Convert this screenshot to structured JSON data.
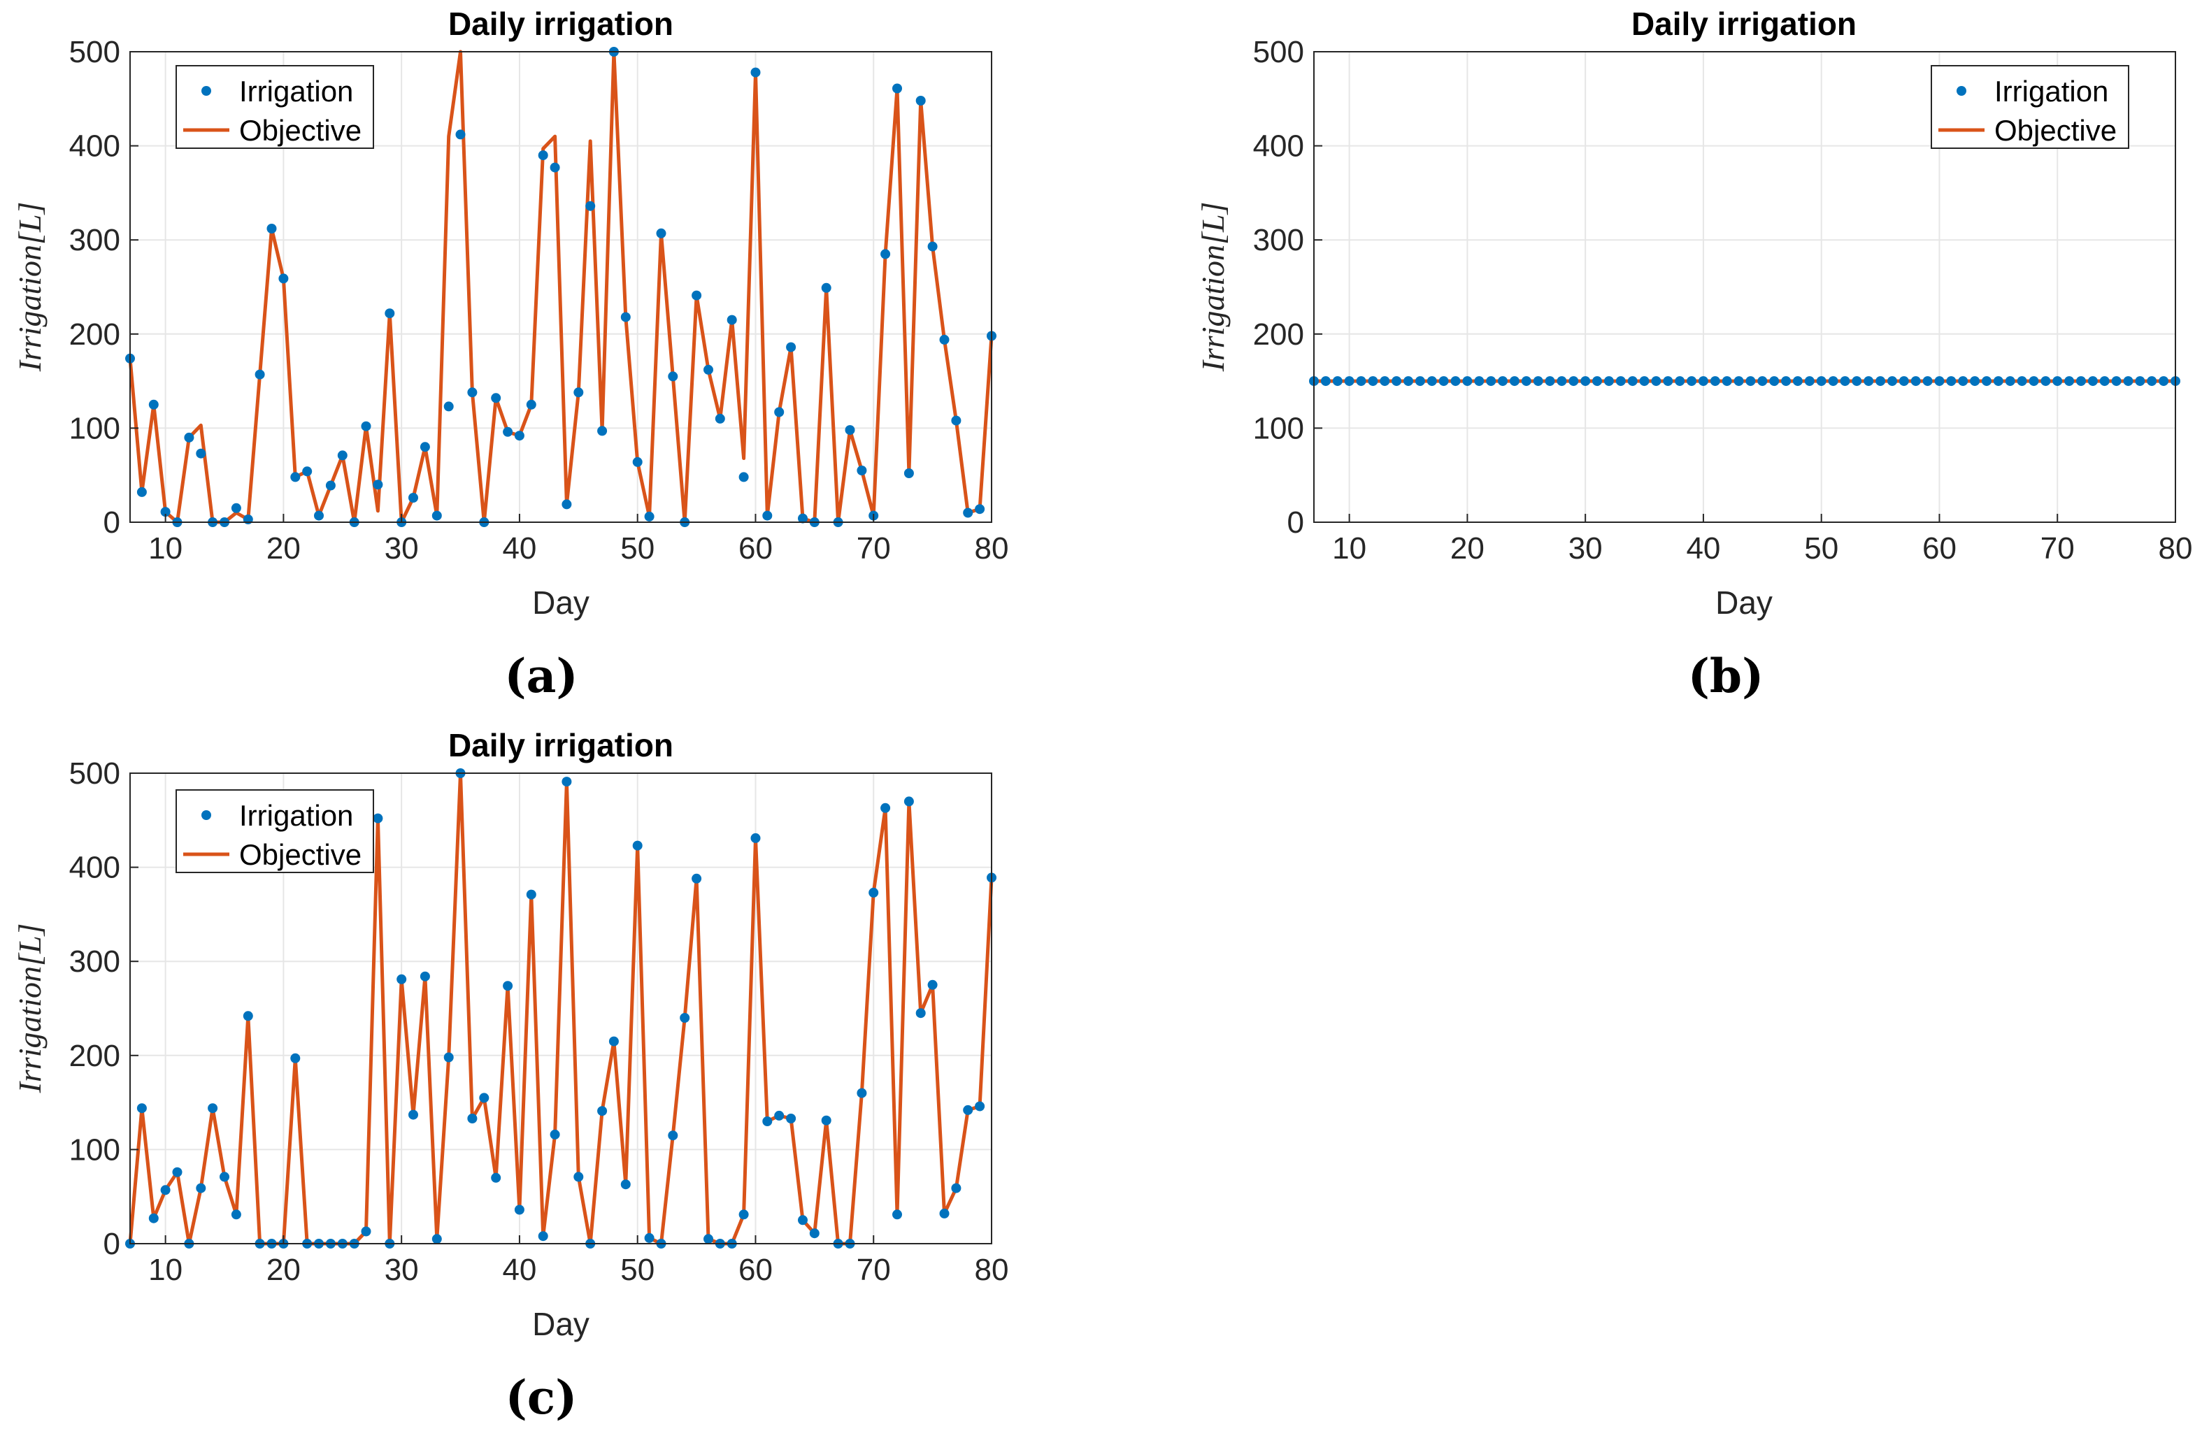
{
  "colors": {
    "points": "#0072BD",
    "line": "#D95319",
    "grid": "#e6e6e6",
    "axis": "#262626"
  },
  "chart_data": [
    {
      "panel_label": "(a)",
      "type": "line",
      "title": "Daily irrigation",
      "xlabel": "Day",
      "ylabel": "Irrigation[L]",
      "xlim": [
        7,
        80
      ],
      "ylim": [
        0,
        500
      ],
      "xticks": [
        10,
        20,
        30,
        40,
        50,
        60,
        70,
        80
      ],
      "yticks": [
        0,
        100,
        200,
        300,
        400,
        500
      ],
      "grid": true,
      "legend": {
        "position": "top-left",
        "entries": [
          "Irrigation",
          "Objective"
        ]
      },
      "x": [
        7,
        8,
        9,
        10,
        11,
        12,
        13,
        14,
        15,
        16,
        17,
        18,
        19,
        20,
        21,
        22,
        23,
        24,
        25,
        26,
        27,
        28,
        29,
        30,
        31,
        32,
        33,
        34,
        35,
        36,
        37,
        38,
        39,
        40,
        41,
        42,
        43,
        44,
        45,
        46,
        47,
        48,
        49,
        50,
        51,
        52,
        53,
        54,
        55,
        56,
        57,
        58,
        59,
        60,
        61,
        62,
        63,
        64,
        65,
        66,
        67,
        68,
        69,
        70,
        71,
        72,
        73,
        74,
        75,
        76,
        77,
        78,
        79,
        80
      ],
      "series": [
        {
          "name": "Irrigation",
          "style": "markers",
          "values": [
            174,
            32,
            125,
            11,
            0,
            90,
            73,
            0,
            0,
            15,
            3,
            157,
            312,
            259,
            48,
            54,
            7,
            39,
            71,
            0,
            102,
            40,
            222,
            0,
            26,
            80,
            7,
            123,
            412,
            138,
            0,
            132,
            96,
            92,
            125,
            390,
            377,
            19,
            138,
            336,
            97,
            500,
            218,
            64,
            6,
            307,
            155,
            0,
            241,
            162,
            110,
            215,
            48,
            478,
            7,
            117,
            186,
            4,
            0,
            249,
            0,
            98,
            55,
            7,
            285,
            461,
            52,
            448,
            293,
            194,
            108,
            10,
            14,
            198
          ]
        },
        {
          "name": "Objective",
          "style": "line",
          "values": [
            174,
            32,
            125,
            11,
            0,
            90,
            103,
            0,
            0,
            10,
            3,
            157,
            312,
            259,
            48,
            54,
            7,
            39,
            71,
            0,
            102,
            12,
            222,
            0,
            26,
            80,
            7,
            410,
            500,
            138,
            0,
            132,
            96,
            92,
            125,
            397,
            410,
            19,
            138,
            405,
            97,
            500,
            218,
            64,
            6,
            307,
            155,
            0,
            241,
            162,
            110,
            215,
            68,
            478,
            7,
            117,
            186,
            4,
            0,
            249,
            0,
            98,
            55,
            7,
            285,
            461,
            52,
            448,
            293,
            194,
            108,
            10,
            14,
            198
          ]
        }
      ]
    },
    {
      "panel_label": "(b)",
      "type": "line",
      "title": "Daily irrigation",
      "xlabel": "Day",
      "ylabel": "Irrigation[L]",
      "xlim": [
        7,
        80
      ],
      "ylim": [
        0,
        500
      ],
      "xticks": [
        10,
        20,
        30,
        40,
        50,
        60,
        70,
        80
      ],
      "yticks": [
        0,
        100,
        200,
        300,
        400,
        500
      ],
      "grid": true,
      "legend": {
        "position": "top-right",
        "entries": [
          "Irrigation",
          "Objective"
        ]
      },
      "x": [
        7,
        8,
        9,
        10,
        11,
        12,
        13,
        14,
        15,
        16,
        17,
        18,
        19,
        20,
        21,
        22,
        23,
        24,
        25,
        26,
        27,
        28,
        29,
        30,
        31,
        32,
        33,
        34,
        35,
        36,
        37,
        38,
        39,
        40,
        41,
        42,
        43,
        44,
        45,
        46,
        47,
        48,
        49,
        50,
        51,
        52,
        53,
        54,
        55,
        56,
        57,
        58,
        59,
        60,
        61,
        62,
        63,
        64,
        65,
        66,
        67,
        68,
        69,
        70,
        71,
        72,
        73,
        74,
        75,
        76,
        77,
        78,
        79,
        80
      ],
      "series": [
        {
          "name": "Irrigation",
          "style": "markers",
          "values": [
            150,
            150,
            150,
            150,
            150,
            150,
            150,
            150,
            150,
            150,
            150,
            150,
            150,
            150,
            150,
            150,
            150,
            150,
            150,
            150,
            150,
            150,
            150,
            150,
            150,
            150,
            150,
            150,
            150,
            150,
            150,
            150,
            150,
            150,
            150,
            150,
            150,
            150,
            150,
            150,
            150,
            150,
            150,
            150,
            150,
            150,
            150,
            150,
            150,
            150,
            150,
            150,
            150,
            150,
            150,
            150,
            150,
            150,
            150,
            150,
            150,
            150,
            150,
            150,
            150,
            150,
            150,
            150,
            150,
            150,
            150,
            150,
            150,
            150
          ]
        },
        {
          "name": "Objective",
          "style": "line",
          "values": [
            150,
            150,
            150,
            150,
            150,
            150,
            150,
            150,
            150,
            150,
            150,
            150,
            150,
            150,
            150,
            150,
            150,
            150,
            150,
            150,
            150,
            150,
            150,
            150,
            150,
            150,
            150,
            150,
            150,
            150,
            150,
            150,
            150,
            150,
            150,
            150,
            150,
            150,
            150,
            150,
            150,
            150,
            150,
            150,
            150,
            150,
            150,
            150,
            150,
            150,
            150,
            150,
            150,
            150,
            150,
            150,
            150,
            150,
            150,
            150,
            150,
            150,
            150,
            150,
            150,
            150,
            150,
            150,
            150,
            150,
            150,
            150,
            150,
            150
          ]
        }
      ]
    },
    {
      "panel_label": "(c)",
      "type": "line",
      "title": "Daily irrigation",
      "xlabel": "Day",
      "ylabel": "Irrigation[L]",
      "xlim": [
        7,
        80
      ],
      "ylim": [
        0,
        500
      ],
      "xticks": [
        10,
        20,
        30,
        40,
        50,
        60,
        70,
        80
      ],
      "yticks": [
        0,
        100,
        200,
        300,
        400,
        500
      ],
      "grid": true,
      "legend": {
        "position": "top-left",
        "entries": [
          "Irrigation",
          "Objective"
        ]
      },
      "x": [
        7,
        8,
        9,
        10,
        11,
        12,
        13,
        14,
        15,
        16,
        17,
        18,
        19,
        20,
        21,
        22,
        23,
        24,
        25,
        26,
        27,
        28,
        29,
        30,
        31,
        32,
        33,
        34,
        35,
        36,
        37,
        38,
        39,
        40,
        41,
        42,
        43,
        44,
        45,
        46,
        47,
        48,
        49,
        50,
        51,
        52,
        53,
        54,
        55,
        56,
        57,
        58,
        59,
        60,
        61,
        62,
        63,
        64,
        65,
        66,
        67,
        68,
        69,
        70,
        71,
        72,
        73,
        74,
        75,
        76,
        77,
        78,
        79,
        80
      ],
      "series": [
        {
          "name": "Irrigation",
          "style": "markers",
          "values": [
            0,
            144,
            27,
            57,
            76,
            0,
            59,
            144,
            71,
            31,
            242,
            0,
            0,
            0,
            197,
            0,
            0,
            0,
            0,
            0,
            13,
            452,
            0,
            281,
            137,
            284,
            5,
            198,
            500,
            133,
            155,
            70,
            274,
            36,
            371,
            8,
            116,
            491,
            71,
            0,
            141,
            215,
            63,
            423,
            6,
            0,
            115,
            240,
            388,
            5,
            0,
            0,
            31,
            431,
            130,
            136,
            133,
            25,
            11,
            131,
            0,
            0,
            160,
            373,
            463,
            31,
            470,
            245,
            275,
            32,
            59,
            142,
            146,
            389
          ]
        },
        {
          "name": "Objective",
          "style": "line",
          "values": [
            0,
            144,
            27,
            57,
            76,
            0,
            59,
            144,
            71,
            31,
            242,
            0,
            0,
            0,
            197,
            0,
            0,
            0,
            0,
            0,
            13,
            452,
            0,
            281,
            137,
            284,
            5,
            198,
            500,
            133,
            155,
            70,
            274,
            36,
            371,
            8,
            116,
            491,
            71,
            0,
            141,
            215,
            63,
            423,
            6,
            0,
            115,
            240,
            388,
            5,
            0,
            0,
            31,
            431,
            130,
            136,
            133,
            25,
            11,
            131,
            0,
            0,
            160,
            373,
            463,
            31,
            470,
            245,
            275,
            32,
            59,
            142,
            146,
            389
          ]
        }
      ]
    }
  ]
}
